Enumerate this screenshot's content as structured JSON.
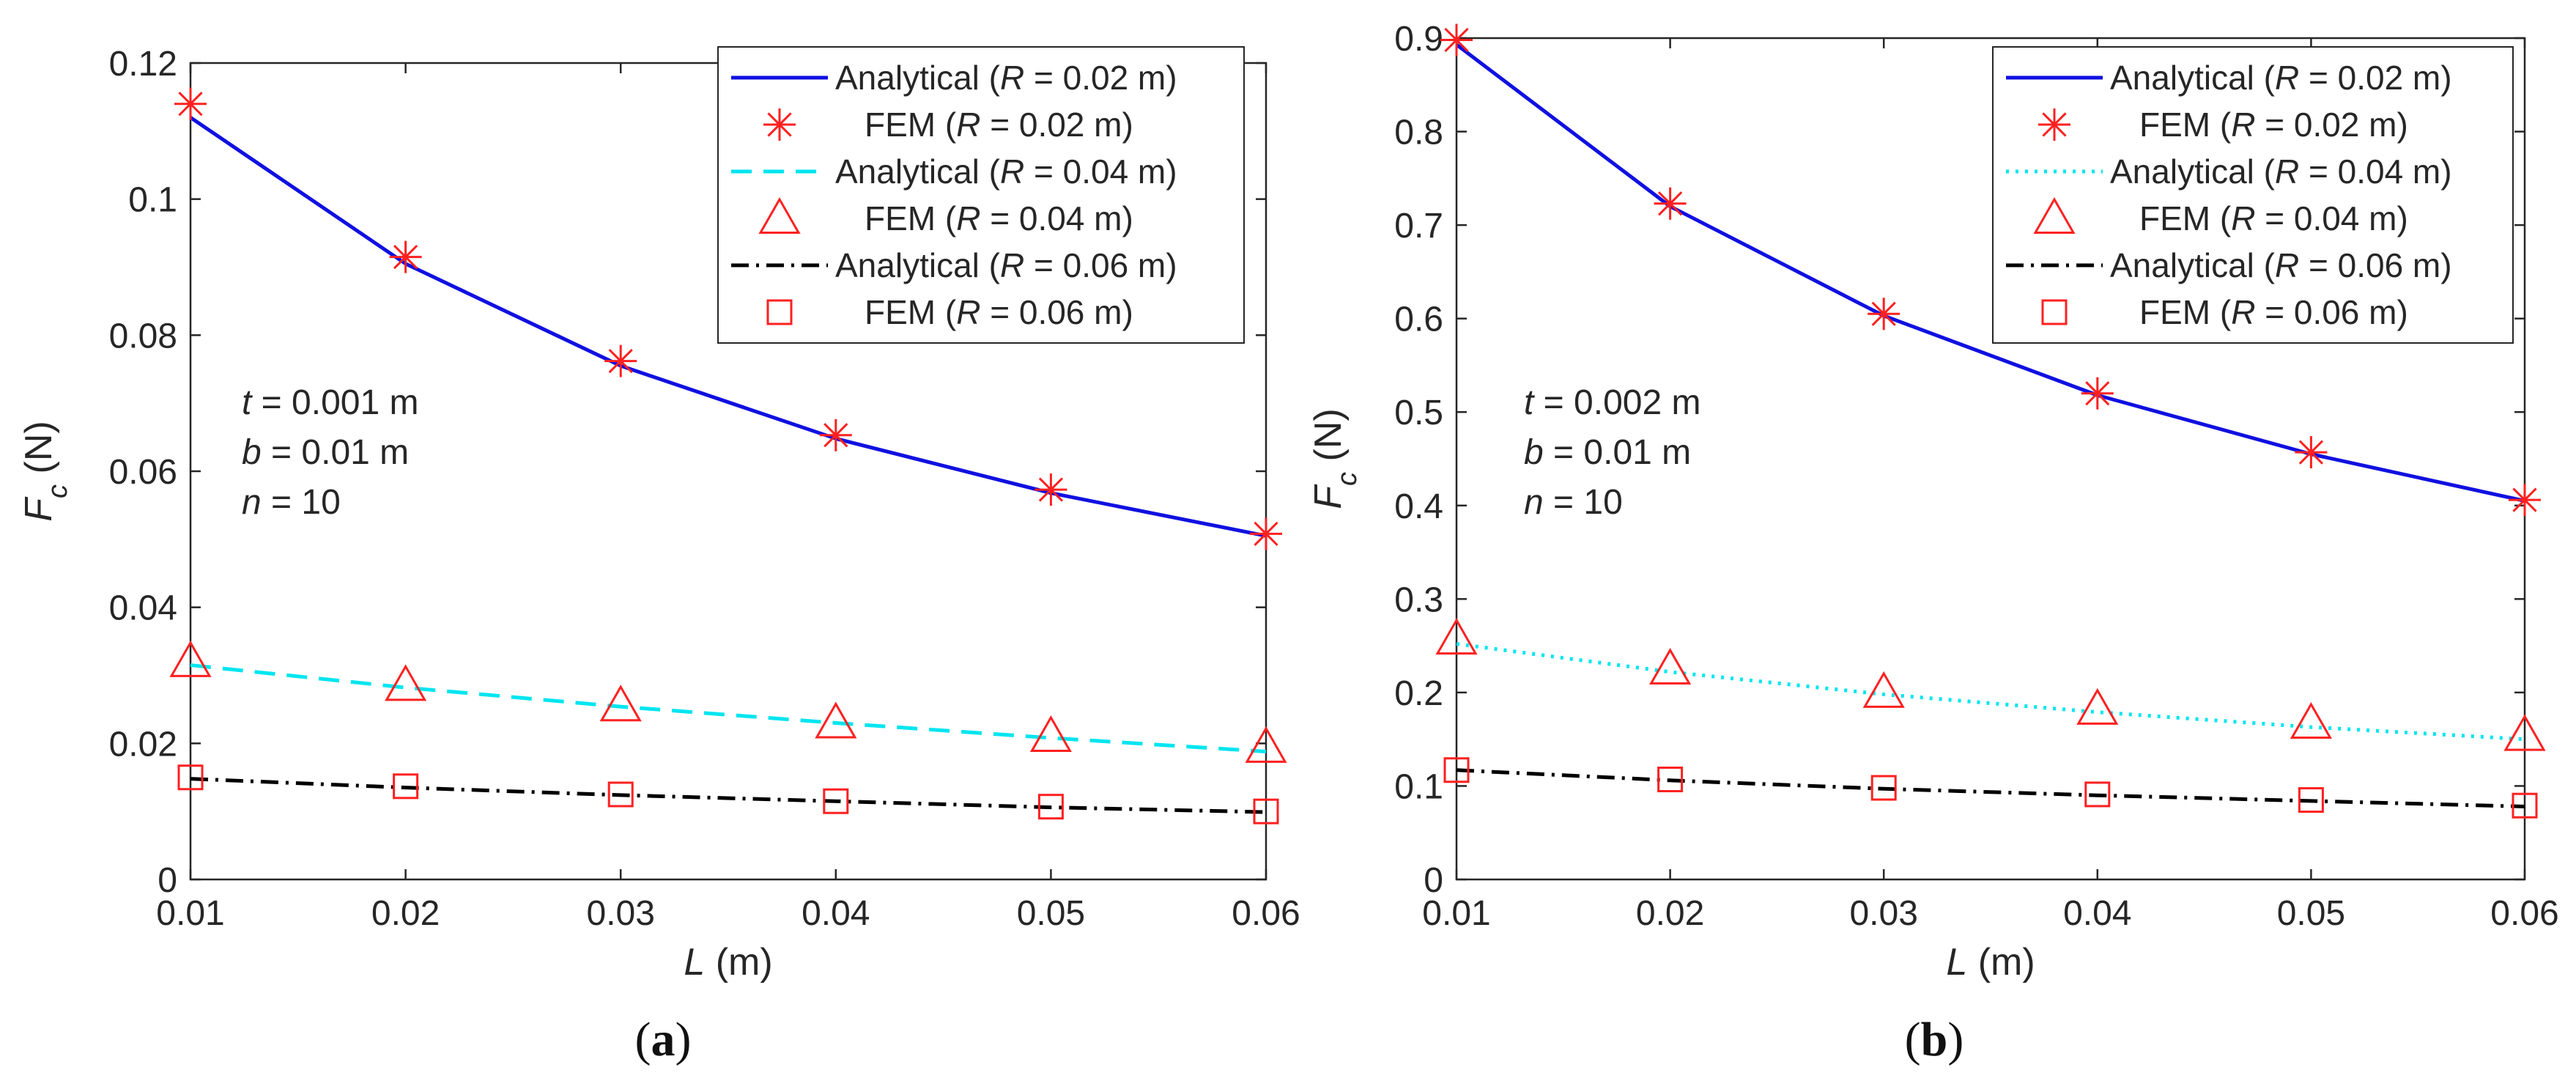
{
  "chart_data": [
    {
      "type": "line",
      "panel_label": "a",
      "xlabel_var": "L",
      "xlabel_unit": " (m)",
      "ylabel_var": "F",
      "ylabel_sub": "c",
      "ylabel_unit": " (N)",
      "xlim": [
        0.01,
        0.06
      ],
      "ylim": [
        0,
        0.12
      ],
      "xticks": [
        0.01,
        0.02,
        0.03,
        0.04,
        0.05,
        0.06
      ],
      "xtick_labels": [
        "0.01",
        "0.02",
        "0.03",
        "0.04",
        "0.05",
        "0.06"
      ],
      "yticks": [
        0,
        0.02,
        0.04,
        0.06,
        0.08,
        0.1,
        0.12
      ],
      "ytick_labels": [
        "0",
        "0.02",
        "0.04",
        "0.06",
        "0.08",
        "0.1",
        "0.12"
      ],
      "grid": false,
      "legend_position": "top-right",
      "annotations": [
        {
          "var": "t",
          "rest": " = 0.001 m"
        },
        {
          "var": "b",
          "rest": " = 0.01 m"
        },
        {
          "var": "n",
          "rest": " = 10"
        }
      ],
      "x": [
        0.01,
        0.02,
        0.03,
        0.04,
        0.05,
        0.06
      ],
      "series": [
        {
          "name_prefix": "Analytical (",
          "name_var": "R",
          "name_suffix": " = 0.02 m)",
          "kind": "line",
          "color": "#1010e0",
          "dash": "solid",
          "values": [
            0.112,
            0.0905,
            0.0755,
            0.0648,
            0.0568,
            0.0505
          ]
        },
        {
          "name_prefix": "FEM (",
          "name_var": "R",
          "name_suffix": " = 0.02 m)",
          "kind": "marker",
          "marker": "star",
          "color": "#ff2020",
          "values": [
            0.114,
            0.0915,
            0.0762,
            0.0653,
            0.0573,
            0.0508
          ]
        },
        {
          "name_prefix": "Analytical (",
          "name_var": "R",
          "name_suffix": " = 0.04 m)",
          "kind": "line",
          "color": "#00e5f0",
          "dash": "dashed",
          "values": [
            0.0315,
            0.0282,
            0.0254,
            0.023,
            0.0208,
            0.0188
          ]
        },
        {
          "name_prefix": "FEM (",
          "name_var": "R",
          "name_suffix": " = 0.04 m)",
          "kind": "marker",
          "marker": "triangle",
          "color": "#ff2020",
          "values": [
            0.032,
            0.0285,
            0.0255,
            0.023,
            0.021,
            0.0194
          ]
        },
        {
          "name_prefix": "Analytical (",
          "name_var": "R",
          "name_suffix": " = 0.06 m)",
          "kind": "line",
          "color": "#000000",
          "dash": "dashdot",
          "values": [
            0.0148,
            0.0135,
            0.0124,
            0.0115,
            0.0106,
            0.0099
          ]
        },
        {
          "name_prefix": "FEM (",
          "name_var": "R",
          "name_suffix": " = 0.06 m)",
          "kind": "marker",
          "marker": "square",
          "color": "#ff2020",
          "values": [
            0.015,
            0.0137,
            0.0125,
            0.0115,
            0.0107,
            0.01
          ]
        }
      ]
    },
    {
      "type": "line",
      "panel_label": "b",
      "xlabel_var": "L",
      "xlabel_unit": " (m)",
      "ylabel_var": "F",
      "ylabel_sub": "c",
      "ylabel_unit": " (N)",
      "xlim": [
        0.01,
        0.06
      ],
      "ylim": [
        0,
        0.9
      ],
      "xticks": [
        0.01,
        0.02,
        0.03,
        0.04,
        0.05,
        0.06
      ],
      "xtick_labels": [
        "0.01",
        "0.02",
        "0.03",
        "0.04",
        "0.05",
        "0.06"
      ],
      "yticks": [
        0,
        0.1,
        0.2,
        0.3,
        0.4,
        0.5,
        0.6,
        0.7,
        0.8,
        0.9
      ],
      "ytick_labels": [
        "0",
        "0.1",
        "0.2",
        "0.3",
        "0.4",
        "0.5",
        "0.6",
        "0.7",
        "0.8",
        "0.9"
      ],
      "grid": false,
      "legend_position": "top-right",
      "annotations": [
        {
          "var": "t",
          "rest": " = 0.002 m"
        },
        {
          "var": "b",
          "rest": " = 0.01 m"
        },
        {
          "var": "n",
          "rest": " = 10"
        }
      ],
      "x": [
        0.01,
        0.02,
        0.03,
        0.04,
        0.05,
        0.06
      ],
      "series": [
        {
          "name_prefix": "Analytical (",
          "name_var": "R",
          "name_suffix": " = 0.02 m)",
          "kind": "line",
          "color": "#1010e0",
          "dash": "solid",
          "values": [
            0.893,
            0.72,
            0.603,
            0.518,
            0.455,
            0.405
          ]
        },
        {
          "name_prefix": "FEM (",
          "name_var": "R",
          "name_suffix": " = 0.02 m)",
          "kind": "marker",
          "marker": "star",
          "color": "#ff2020",
          "values": [
            0.898,
            0.723,
            0.605,
            0.52,
            0.457,
            0.406
          ]
        },
        {
          "name_prefix": "Analytical (",
          "name_var": "R",
          "name_suffix": " = 0.04 m)",
          "kind": "line",
          "color": "#00e5f0",
          "dash": "dotted",
          "values": [
            0.252,
            0.222,
            0.198,
            0.179,
            0.163,
            0.15
          ]
        },
        {
          "name_prefix": "FEM (",
          "name_var": "R",
          "name_suffix": " = 0.04 m)",
          "kind": "marker",
          "marker": "triangle",
          "color": "#ff2020",
          "values": [
            0.257,
            0.225,
            0.2,
            0.182,
            0.167,
            0.154
          ]
        },
        {
          "name_prefix": "Analytical (",
          "name_var": "R",
          "name_suffix": " = 0.06 m)",
          "kind": "line",
          "color": "#000000",
          "dash": "dashdot",
          "values": [
            0.117,
            0.106,
            0.097,
            0.09,
            0.084,
            0.078
          ]
        },
        {
          "name_prefix": "FEM (",
          "name_var": "R",
          "name_suffix": " = 0.06 m)",
          "kind": "marker",
          "marker": "square",
          "color": "#ff2020",
          "values": [
            0.117,
            0.107,
            0.098,
            0.091,
            0.085,
            0.079
          ]
        }
      ]
    }
  ]
}
